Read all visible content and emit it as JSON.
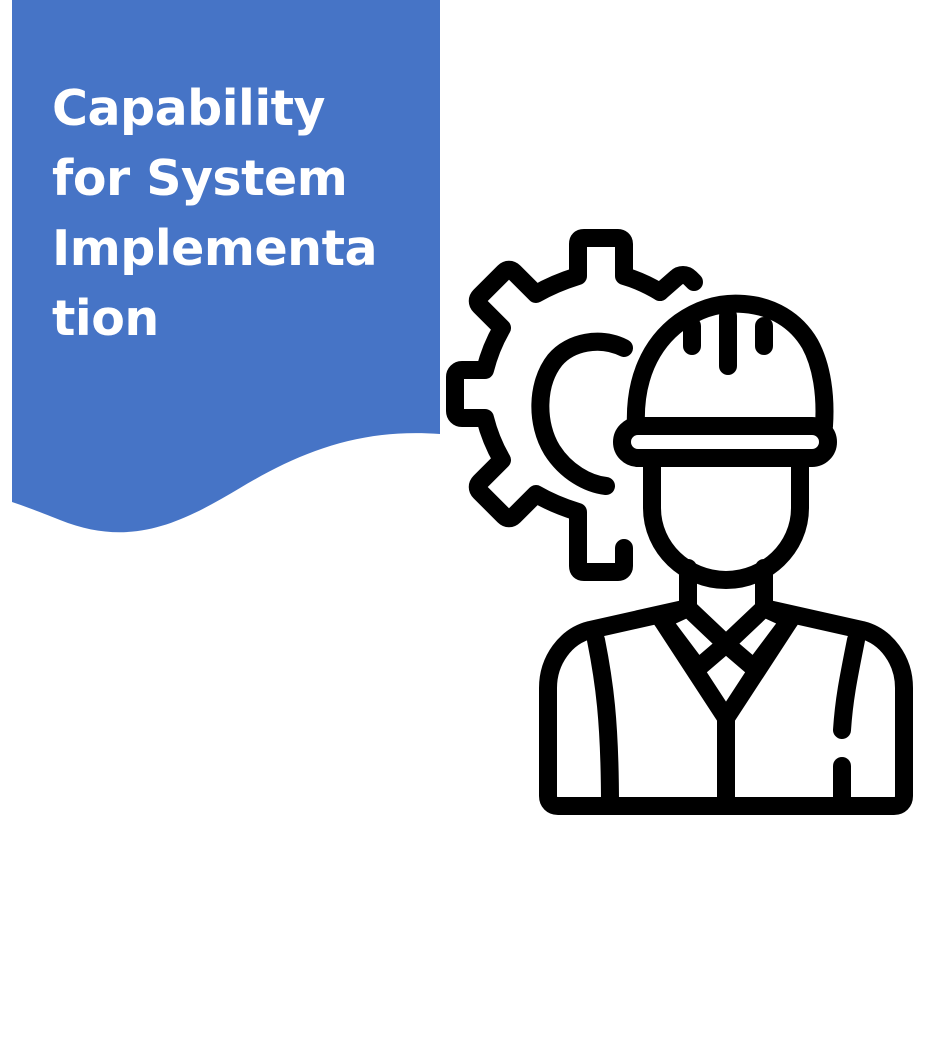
{
  "banner": {
    "title_lines": [
      "Capability",
      "for System",
      "Implementa",
      "tion"
    ],
    "color": "#4674c6"
  },
  "illustration": {
    "icon": "engineer-with-gear-icon",
    "stroke_color": "#000000"
  }
}
